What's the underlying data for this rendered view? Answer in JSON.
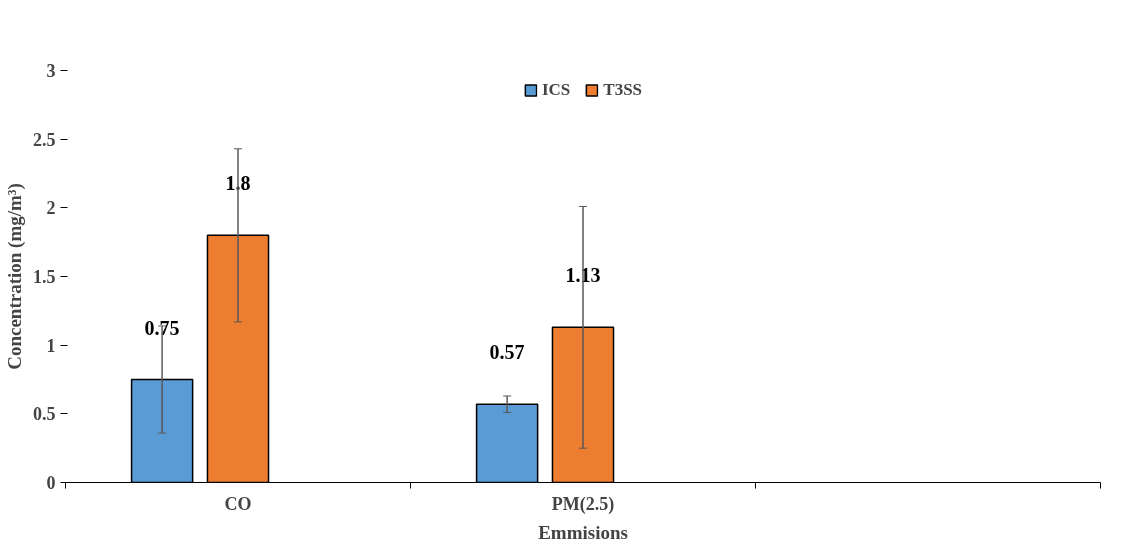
{
  "chart_data": {
    "type": "bar",
    "xlabel": "Emmisions",
    "ylabel": "Concentration (mg/m³)",
    "categories": [
      "CO",
      "PM(2.5)",
      null
    ],
    "series": [
      {
        "name": "ICS",
        "color": "#5b9bd5",
        "values": [
          0.75,
          0.57,
          null
        ],
        "errors": [
          0.39,
          0.06,
          null
        ]
      },
      {
        "name": "T3SS",
        "color": "#ed7d31",
        "values": [
          1.8,
          1.13,
          null
        ],
        "errors": [
          0.63,
          0.88,
          null
        ]
      }
    ],
    "ylim": [
      0,
      3
    ],
    "yticks": [
      0,
      0.5,
      1,
      1.5,
      2,
      2.5,
      3
    ],
    "grid": false,
    "legend": "top",
    "data_labels": true
  }
}
